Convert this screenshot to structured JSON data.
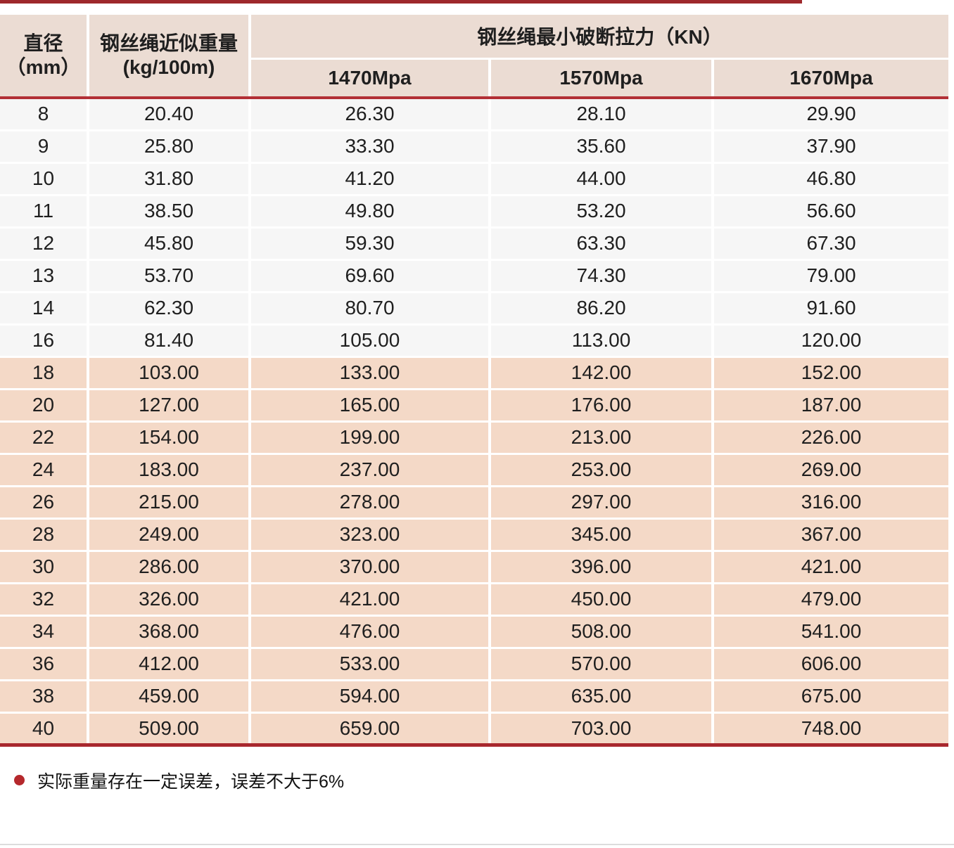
{
  "table": {
    "header": {
      "diameter_line1": "直径",
      "diameter_line2": "（mm）",
      "weight_line1": "钢丝绳近似重量",
      "weight_line2": "(kg/100m)",
      "breaking_force": "钢丝绳最小破断拉力（KN）",
      "grades": [
        "1470Mpa",
        "1570Mpa",
        "1670Mpa"
      ]
    },
    "gray_row_count": 8,
    "rows": [
      [
        "8",
        "20.40",
        "26.30",
        "28.10",
        "29.90"
      ],
      [
        "9",
        "25.80",
        "33.30",
        "35.60",
        "37.90"
      ],
      [
        "10",
        "31.80",
        "41.20",
        "44.00",
        "46.80"
      ],
      [
        "11",
        "38.50",
        "49.80",
        "53.20",
        "56.60"
      ],
      [
        "12",
        "45.80",
        "59.30",
        "63.30",
        "67.30"
      ],
      [
        "13",
        "53.70",
        "69.60",
        "74.30",
        "79.00"
      ],
      [
        "14",
        "62.30",
        "80.70",
        "86.20",
        "91.60"
      ],
      [
        "16",
        "81.40",
        "105.00",
        "113.00",
        "120.00"
      ],
      [
        "18",
        "103.00",
        "133.00",
        "142.00",
        "152.00"
      ],
      [
        "20",
        "127.00",
        "165.00",
        "176.00",
        "187.00"
      ],
      [
        "22",
        "154.00",
        "199.00",
        "213.00",
        "226.00"
      ],
      [
        "24",
        "183.00",
        "237.00",
        "253.00",
        "269.00"
      ],
      [
        "26",
        "215.00",
        "278.00",
        "297.00",
        "316.00"
      ],
      [
        "28",
        "249.00",
        "323.00",
        "345.00",
        "367.00"
      ],
      [
        "30",
        "286.00",
        "370.00",
        "396.00",
        "421.00"
      ],
      [
        "32",
        "326.00",
        "421.00",
        "450.00",
        "479.00"
      ],
      [
        "34",
        "368.00",
        "476.00",
        "508.00",
        "541.00"
      ],
      [
        "36",
        "412.00",
        "533.00",
        "570.00",
        "606.00"
      ],
      [
        "38",
        "459.00",
        "594.00",
        "635.00",
        "675.00"
      ],
      [
        "40",
        "509.00",
        "659.00",
        "703.00",
        "748.00"
      ]
    ]
  },
  "footnote": {
    "text": "实际重量存在一定误差，误差不大于6%"
  },
  "colors": {
    "top_rule": "#9e282c",
    "header_bg": "#ebdcd3",
    "header_rule": "#b22f35",
    "row_gray": "#f6f6f6",
    "row_salmon": "#f4d9c7",
    "bottom_table_rule": "#a8282e",
    "footnote_bullet": "#b5282c",
    "bottom_page_rule": "#dcdcdc",
    "text": "#1f1f1f"
  }
}
